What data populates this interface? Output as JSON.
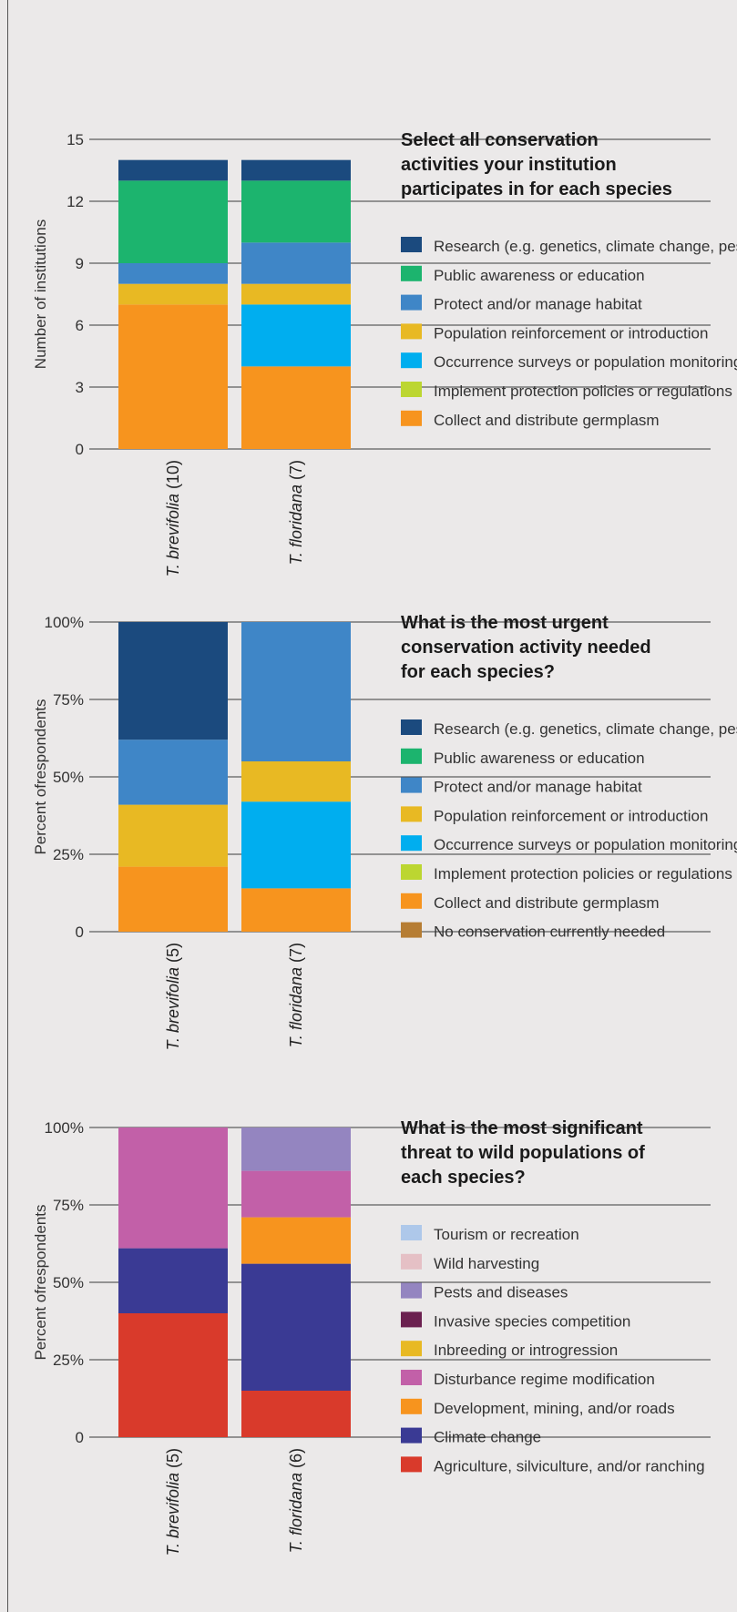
{
  "chart_data": [
    {
      "type": "bar",
      "stacked": true,
      "title_lines": [
        "Select all conservation",
        "activities your institution",
        "participates in for each species"
      ],
      "ylabel": "Number of institutions",
      "ylim": [
        0,
        15
      ],
      "yticks": [
        "0",
        "3",
        "6",
        "9",
        "12",
        "15"
      ],
      "ytick_values": [
        0,
        3,
        6,
        9,
        12,
        15
      ],
      "categories": [
        {
          "species": "T. brevifolia",
          "count": "(10)"
        },
        {
          "species": "T. floridana",
          "count": "(7)"
        }
      ],
      "series": [
        {
          "name": "Research (e.g. genetics, climate change, pests)",
          "color": "#1b4a7e",
          "values": [
            1,
            1
          ]
        },
        {
          "name": "Public awareness or education",
          "color": "#1cb46e",
          "values": [
            4,
            3
          ]
        },
        {
          "name": "Protect and/or manage habitat",
          "color": "#3f86c7",
          "values": [
            1,
            2
          ]
        },
        {
          "name": "Population reinforcement or introduction",
          "color": "#e8b923",
          "values": [
            1,
            1
          ]
        },
        {
          "name": "Occurrence surveys or population monitoring",
          "color": "#00aeef",
          "values": [
            0,
            3
          ]
        },
        {
          "name": "Implement protection policies or regulations",
          "color": "#bcd631",
          "values": [
            0,
            0
          ]
        },
        {
          "name": "Collect and distribute germplasm",
          "color": "#f7941e",
          "values": [
            7,
            4
          ]
        }
      ]
    },
    {
      "type": "bar",
      "stacked": true,
      "title_lines": [
        "What is the most urgent",
        "conservation activity needed",
        "for each species?"
      ],
      "ylabel": "Percent ofrespondents",
      "ylim": [
        0,
        100
      ],
      "yticks": [
        "0",
        "25%",
        "50%",
        "75%",
        "100%"
      ],
      "ytick_values": [
        0,
        25,
        50,
        75,
        100
      ],
      "categories": [
        {
          "species": "T. brevifolia",
          "count": "(5)"
        },
        {
          "species": "T. floridana",
          "count": "(7)"
        }
      ],
      "series": [
        {
          "name": "Research (e.g. genetics, climate change, pests)",
          "color": "#1b4a7e",
          "values": [
            38,
            0
          ]
        },
        {
          "name": "Public awareness or education",
          "color": "#1cb46e",
          "values": [
            0,
            0
          ]
        },
        {
          "name": "Protect and/or manage habitat",
          "color": "#3f86c7",
          "values": [
            21,
            45
          ]
        },
        {
          "name": "Population reinforcement or introduction",
          "color": "#e8b923",
          "values": [
            20,
            13
          ]
        },
        {
          "name": "Occurrence surveys or population monitoring",
          "color": "#00aeef",
          "values": [
            0,
            28
          ]
        },
        {
          "name": "Implement protection policies or regulations",
          "color": "#bcd631",
          "values": [
            0,
            0
          ]
        },
        {
          "name": "Collect and distribute germplasm",
          "color": "#f7941e",
          "values": [
            21,
            14
          ]
        },
        {
          "name": "No conservation currently needed",
          "color": "#b67d33",
          "values": [
            0,
            0
          ]
        }
      ]
    },
    {
      "type": "bar",
      "stacked": true,
      "title_lines": [
        "What is the most significant",
        "threat to wild populations of",
        "each species?"
      ],
      "ylabel": "Percent ofrespondents",
      "ylim": [
        0,
        100
      ],
      "yticks": [
        "0",
        "25%",
        "50%",
        "75%",
        "100%"
      ],
      "ytick_values": [
        0,
        25,
        50,
        75,
        100
      ],
      "categories": [
        {
          "species": "T. brevifolia",
          "count": "(5)"
        },
        {
          "species": "T. floridana",
          "count": "(6)"
        }
      ],
      "series": [
        {
          "name": "Tourism or recreation",
          "color": "#aec8ea",
          "values": [
            0,
            0
          ]
        },
        {
          "name": "Wild harvesting",
          "color": "#e5c0c5",
          "values": [
            0,
            0
          ]
        },
        {
          "name": "Pests and diseases",
          "color": "#9485c0",
          "values": [
            0,
            14
          ]
        },
        {
          "name": "Invasive species competition",
          "color": "#6b2150",
          "values": [
            0,
            0
          ]
        },
        {
          "name": "Inbreeding or introgression",
          "color": "#e8b923",
          "values": [
            0,
            0
          ]
        },
        {
          "name": "Disturbance regime modification",
          "color": "#c260a8",
          "values": [
            39,
            15
          ]
        },
        {
          "name": "Development, mining, and/or roads",
          "color": "#f7941e",
          "values": [
            0,
            15
          ]
        },
        {
          "name": "Climate change",
          "color": "#3a3a94",
          "values": [
            21,
            41
          ]
        },
        {
          "name": "Agriculture, silviculture, and/or ranching",
          "color": "#d93a2b",
          "values": [
            40,
            15
          ]
        }
      ]
    }
  ]
}
